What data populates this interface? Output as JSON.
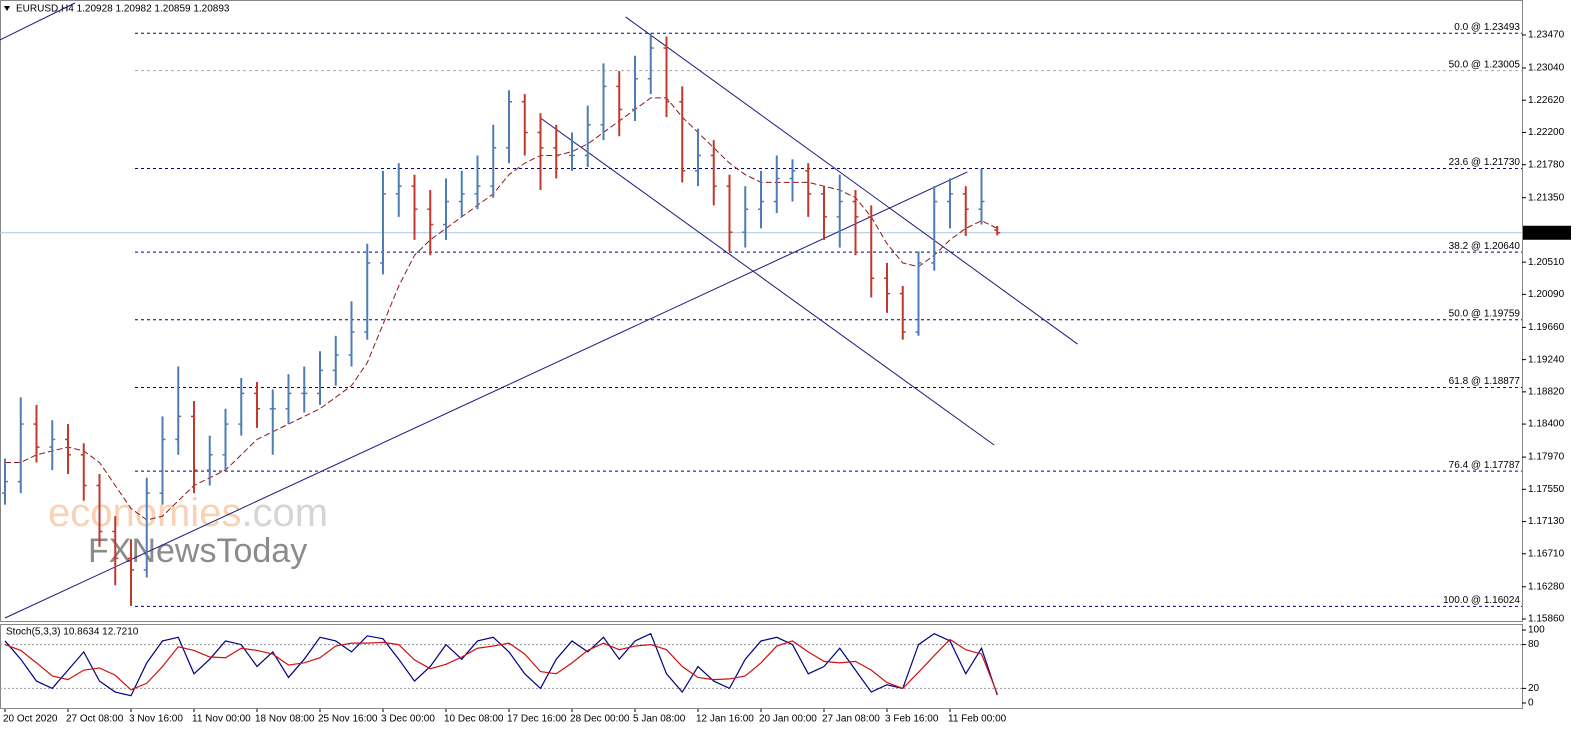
{
  "chart_data": {
    "type": "ohlc",
    "title": "EURUSD,H4  1.20928 1.20982 1.20859 1.20893",
    "categories": [
      "20 Oct 2020",
      null,
      null,
      null,
      "27 Oct 08:00",
      null,
      null,
      null,
      "3 Nov 16:00",
      null,
      null,
      null,
      "11 Nov 00:00",
      null,
      null,
      null,
      "18 Nov 08:00",
      null,
      null,
      null,
      "25 Nov 16:00",
      null,
      null,
      null,
      "3 Dec 00:00",
      null,
      null,
      null,
      "10 Dec 08:00",
      null,
      null,
      null,
      "17 Dec 16:00",
      null,
      null,
      null,
      "28 Dec 00:00",
      null,
      null,
      null,
      "5 Jan 08:00",
      null,
      null,
      null,
      "12 Jan 16:00",
      null,
      null,
      null,
      "20 Jan 00:00",
      null,
      null,
      null,
      "27 Jan 08:00",
      null,
      null,
      null,
      "3 Feb 16:00",
      null,
      null,
      null,
      "11 Feb 00:00",
      null,
      null,
      null
    ],
    "open": [
      1.175,
      1.1765,
      1.184,
      1.181,
      1.182,
      1.18,
      1.176,
      1.17,
      1.1665,
      1.165,
      1.175,
      1.182,
      1.185,
      1.178,
      1.18,
      1.184,
      1.188,
      1.186,
      1.186,
      1.188,
      1.188,
      1.191,
      1.193,
      1.196,
      1.205,
      1.214,
      1.215,
      1.212,
      1.21,
      1.213,
      1.214,
      1.215,
      1.22,
      1.226,
      1.222,
      1.22,
      1.219,
      1.219,
      1.223,
      1.228,
      1.225,
      1.229,
      1.233,
      1.226,
      1.217,
      1.219,
      1.215,
      1.209,
      1.212,
      1.213,
      1.216,
      1.217,
      1.214,
      1.211,
      1.213,
      1.211,
      1.203,
      1.201,
      1.196,
      1.205,
      1.213,
      1.214,
      1.212,
      1.20928
    ],
    "high": [
      1.1795,
      1.1875,
      1.1865,
      1.1845,
      1.184,
      1.1815,
      1.1775,
      1.172,
      1.169,
      1.177,
      1.185,
      1.1915,
      1.187,
      1.1825,
      1.186,
      1.19,
      1.1895,
      1.1885,
      1.1905,
      1.1915,
      1.1935,
      1.1955,
      1.2,
      1.2075,
      1.217,
      1.218,
      1.2165,
      1.2145,
      1.216,
      1.217,
      1.219,
      1.223,
      1.2275,
      1.227,
      1.2245,
      1.223,
      1.222,
      1.2255,
      1.231,
      1.23,
      1.232,
      1.2349,
      1.2345,
      1.228,
      1.2225,
      1.221,
      1.2165,
      1.215,
      1.217,
      1.219,
      1.2185,
      1.218,
      1.215,
      1.2165,
      1.2145,
      1.2125,
      1.205,
      1.202,
      1.2065,
      1.215,
      1.216,
      1.215,
      1.2173,
      1.20982
    ],
    "low": [
      1.1735,
      1.175,
      1.179,
      1.178,
      1.1775,
      1.174,
      1.168,
      1.163,
      1.1603,
      1.164,
      1.1735,
      1.18,
      1.175,
      1.176,
      1.178,
      1.1825,
      1.1835,
      1.18,
      1.184,
      1.1855,
      1.1865,
      1.189,
      1.1915,
      1.195,
      1.2035,
      1.211,
      1.208,
      1.206,
      1.208,
      1.211,
      1.212,
      1.2135,
      1.218,
      1.219,
      1.2145,
      1.216,
      1.217,
      1.2175,
      1.221,
      1.2215,
      1.2235,
      1.227,
      1.224,
      1.2155,
      1.215,
      1.2125,
      1.2065,
      1.207,
      1.2095,
      1.2115,
      1.213,
      1.211,
      1.208,
      1.207,
      1.206,
      1.2005,
      1.1985,
      1.195,
      1.1955,
      1.204,
      1.2095,
      1.2085,
      1.21,
      1.20859
    ],
    "close": [
      1.1765,
      1.184,
      1.181,
      1.182,
      1.18,
      1.176,
      1.17,
      1.1665,
      1.165,
      1.175,
      1.182,
      1.185,
      1.178,
      1.18,
      1.184,
      1.188,
      1.186,
      1.186,
      1.188,
      1.188,
      1.191,
      1.193,
      1.196,
      1.205,
      1.214,
      1.215,
      1.212,
      1.21,
      1.213,
      1.214,
      1.215,
      1.22,
      1.226,
      1.222,
      1.22,
      1.219,
      1.219,
      1.223,
      1.228,
      1.225,
      1.229,
      1.233,
      1.226,
      1.217,
      1.219,
      1.215,
      1.209,
      1.212,
      1.213,
      1.216,
      1.217,
      1.214,
      1.211,
      1.213,
      1.211,
      1.203,
      1.201,
      1.196,
      1.205,
      1.213,
      1.214,
      1.212,
      1.213,
      1.20893
    ],
    "up_color": "#4f7db3",
    "down_color": "#c0392b",
    "moving_average": {
      "color": "#8b1a1a",
      "values": [
        1.179,
        1.179,
        1.18,
        1.1805,
        1.181,
        1.1805,
        1.179,
        1.176,
        1.173,
        1.1715,
        1.172,
        1.174,
        1.176,
        1.177,
        1.178,
        1.18,
        1.182,
        1.183,
        1.184,
        1.185,
        1.186,
        1.1875,
        1.189,
        1.192,
        1.197,
        1.202,
        1.206,
        1.208,
        1.2095,
        1.211,
        1.2125,
        1.214,
        1.2165,
        1.218,
        1.219,
        1.219,
        1.2195,
        1.2205,
        1.222,
        1.2235,
        1.225,
        1.2265,
        1.2265,
        1.224,
        1.222,
        1.22,
        1.218,
        1.2165,
        1.2155,
        1.2155,
        1.2155,
        1.2155,
        1.215,
        1.2145,
        1.2135,
        1.211,
        1.2075,
        1.205,
        1.2045,
        1.206,
        1.208,
        1.2095,
        1.2105,
        1.2095
      ]
    },
    "ylim": [
      1.15847,
      1.23926
    ],
    "yticks": [
      {
        "value": 1.2347,
        "label": "1.23470"
      },
      {
        "value": 1.2304,
        "label": "1.23040"
      },
      {
        "value": 1.2262,
        "label": "1.22620"
      },
      {
        "value": 1.222,
        "label": "1.22200"
      },
      {
        "value": 1.2178,
        "label": "1.21780"
      },
      {
        "value": 1.2135,
        "label": "1.21350"
      },
      {
        "value": 1.2051,
        "label": "1.20510"
      },
      {
        "value": 1.2009,
        "label": "1.20090"
      },
      {
        "value": 1.1966,
        "label": "1.19660"
      },
      {
        "value": 1.1924,
        "label": "1.19240"
      },
      {
        "value": 1.1882,
        "label": "1.18820"
      },
      {
        "value": 1.184,
        "label": "1.18400"
      },
      {
        "value": 1.1797,
        "label": "1.17970"
      },
      {
        "value": 1.1755,
        "label": "1.17550"
      },
      {
        "value": 1.1713,
        "label": "1.17130"
      },
      {
        "value": 1.1671,
        "label": "1.16710"
      },
      {
        "value": 1.1628,
        "label": "1.16280"
      },
      {
        "value": 1.1586,
        "label": "1.15860"
      }
    ],
    "current_price": {
      "value": 1.20893,
      "label": "1.20893"
    },
    "fib_levels": [
      {
        "label": "0.0 @ 1.23493",
        "value": 1.23493,
        "color": "#000080"
      },
      {
        "label": "50.0 @ 1.23005",
        "value": 1.23005,
        "color": "#aaaaaa"
      },
      {
        "label": "23.6 @ 1.21730",
        "value": 1.2173,
        "color": "#000080"
      },
      {
        "label": "38.2 @ 1.20640",
        "value": 1.2064,
        "color": "#000080"
      },
      {
        "label": "50.0 @ 1.19759",
        "value": 1.19759,
        "color": "#000080"
      },
      {
        "label": "61.8 @ 1.18877",
        "value": 1.18877,
        "color": "#000080"
      },
      {
        "label": "76.4 @ 1.17787",
        "value": 1.17787,
        "color": "#000080"
      },
      {
        "label": "100.0 @ 1.16024",
        "value": 1.16024,
        "color": "#000080"
      }
    ],
    "trendlines": [
      {
        "x": [
          -0.32,
          4.44
        ],
        "y": [
          1.23405,
          1.23887
        ]
      },
      {
        "x": [
          0,
          61.1
        ],
        "y": [
          1.15873,
          1.21685
        ]
      },
      {
        "x": [
          39.4,
          68.1
        ],
        "y": [
          1.23705,
          1.19443
        ]
      },
      {
        "x": [
          34.0,
          62.8
        ],
        "y": [
          1.22388,
          1.18127
        ]
      }
    ],
    "trendline_color": "#1a1a80",
    "watermark": {
      "brand": "economies",
      "domain": ".com",
      "sub": "FXNewsToday"
    },
    "stochastic": {
      "title": "Stoch(5,3,3) 10.8634 12.7210",
      "ylim": [
        0,
        100
      ],
      "yticks": [
        0,
        20,
        80,
        100
      ],
      "levels": [
        20,
        80
      ],
      "series": [
        {
          "color": "#000080",
          "values": [
            85,
            60,
            30,
            20,
            45,
            70,
            30,
            15,
            10,
            55,
            85,
            90,
            40,
            60,
            85,
            80,
            50,
            70,
            35,
            60,
            90,
            85,
            70,
            92,
            88,
            60,
            30,
            50,
            80,
            60,
            85,
            90,
            70,
            40,
            20,
            60,
            85,
            70,
            90,
            60,
            85,
            95,
            40,
            15,
            50,
            30,
            20,
            60,
            85,
            90,
            80,
            40,
            50,
            75,
            45,
            15,
            25,
            20,
            80,
            95,
            85,
            40,
            75,
            10.8634
          ]
        },
        {
          "color": "#d01010",
          "values": [
            80,
            72,
            55,
            37,
            32,
            45,
            48,
            38,
            18,
            27,
            50,
            77,
            72,
            63,
            62,
            75,
            72,
            67,
            52,
            55,
            62,
            78,
            82,
            82,
            83,
            80,
            59,
            47,
            53,
            63,
            75,
            78,
            82,
            67,
            43,
            40,
            55,
            72,
            82,
            73,
            78,
            80,
            73,
            50,
            35,
            32,
            33,
            37,
            55,
            78,
            85,
            70,
            57,
            55,
            57,
            45,
            28,
            20,
            42,
            65,
            87,
            73,
            67,
            12.721
          ]
        }
      ]
    }
  }
}
